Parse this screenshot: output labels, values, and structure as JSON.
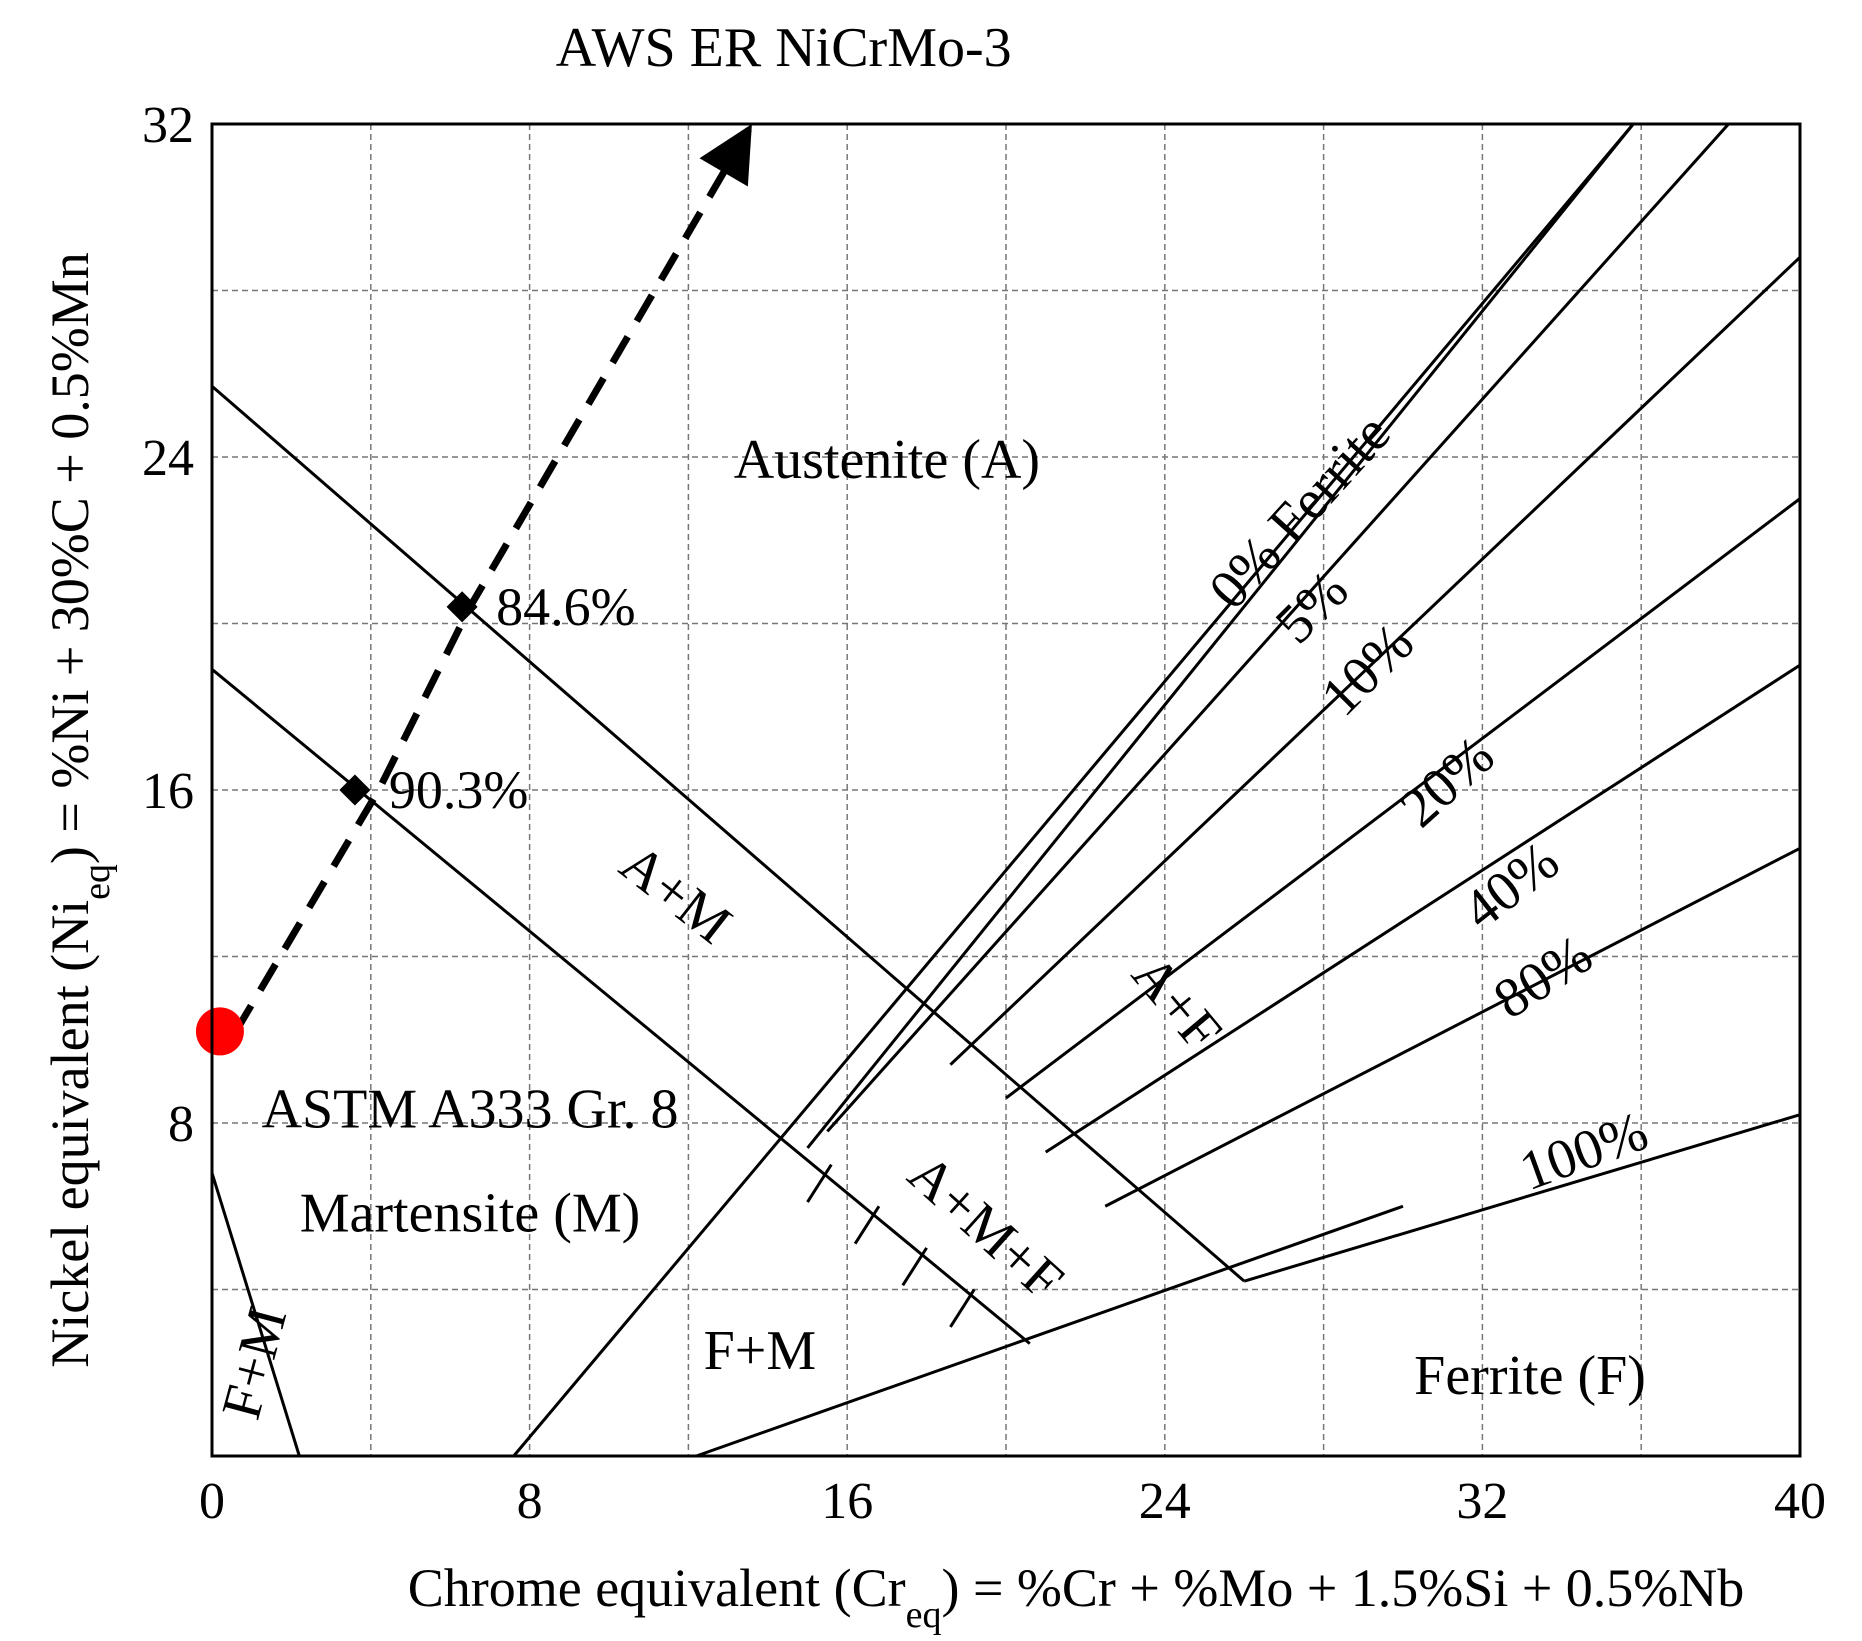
{
  "chart_data": {
    "type": "scatter",
    "title": "",
    "xlabel": {
      "main": "Chrome equivalent (Cr",
      "sub": "eq",
      "rest": ") = %Cr + %Mo + 1.5%Si + 0.5%Nb"
    },
    "ylabel": {
      "main": "Nickel equivalent (Ni",
      "sub": "eq",
      "rest": ") = %Ni + 30%C + 0.5%Mn"
    },
    "xlim": [
      0,
      40
    ],
    "ylim": [
      0,
      32
    ],
    "xticks": [
      "0",
      "8",
      "16",
      "24",
      "32",
      "40"
    ],
    "yticks": [
      "8",
      "16",
      "24",
      "32"
    ],
    "grid": true,
    "boundaries": [
      {
        "name": "austenite-martensite-upper",
        "points": [
          [
            0,
            25.7
          ],
          [
            26,
            4.2
          ]
        ]
      },
      {
        "name": "austenite-martensite-lower",
        "points": [
          [
            0,
            18.9
          ],
          [
            20.6,
            2.7
          ]
        ]
      },
      {
        "name": "ferrite-lower",
        "points": [
          [
            12.2,
            0
          ],
          [
            30,
            6
          ]
        ]
      },
      {
        "name": "ferrite-martensite-left",
        "points": [
          [
            0,
            6.8
          ],
          [
            2.2,
            0
          ]
        ]
      },
      {
        "name": "ferrite-martensite-right",
        "points": [
          [
            7.6,
            0
          ],
          [
            35.8,
            32
          ]
        ]
      },
      {
        "name": "ferrite-0",
        "points": [
          [
            15,
            7.4
          ],
          [
            35.8,
            32
          ]
        ]
      },
      {
        "name": "ferrite-5",
        "points": [
          [
            15.5,
            7.8
          ],
          [
            38.2,
            32
          ]
        ]
      },
      {
        "name": "ferrite-10",
        "points": [
          [
            18.6,
            9.4
          ],
          [
            40,
            28.8
          ]
        ]
      },
      {
        "name": "ferrite-20",
        "points": [
          [
            20,
            8.6
          ],
          [
            40,
            23
          ]
        ]
      },
      {
        "name": "ferrite-40",
        "points": [
          [
            21,
            7.3
          ],
          [
            40,
            19
          ]
        ]
      },
      {
        "name": "ferrite-80",
        "points": [
          [
            22.5,
            6
          ],
          [
            40,
            14.6
          ]
        ]
      },
      {
        "name": "ferrite-100",
        "points": [
          [
            26,
            4.2
          ],
          [
            40,
            8.2
          ]
        ]
      }
    ],
    "region_labels": [
      {
        "text": "Austenite (A)",
        "x": 17,
        "y": 23.8,
        "angle": 0
      },
      {
        "text": "A+M",
        "x": 11.6,
        "y": 13.4,
        "angle": 38
      },
      {
        "text": "Martensite (M)",
        "x": 6.5,
        "y": 5.7,
        "angle": 0
      },
      {
        "text": "ASTM A333 Gr. 8",
        "x": 6.5,
        "y": 8.2,
        "angle": 0
      },
      {
        "text": "F+M",
        "x": 13.8,
        "y": 2.4,
        "angle": 0
      },
      {
        "text": "F+M",
        "x": 1.2,
        "y": 2.2,
        "angle": -75
      },
      {
        "text": "A+M+F",
        "x": 19.4,
        "y": 5.4,
        "angle": 42
      },
      {
        "text": "A+F",
        "x": 24.2,
        "y": 10.8,
        "angle": 50
      },
      {
        "text": "Ferrite (F)",
        "x": 33.2,
        "y": 1.8,
        "angle": 0
      }
    ],
    "iso_labels": [
      {
        "text": "0% Ferrite",
        "x": 27.5,
        "y": 22.6,
        "angle": -48
      },
      {
        "text": "5%",
        "x": 27.8,
        "y": 20.3,
        "angle": -45
      },
      {
        "text": "10%",
        "x": 29.2,
        "y": 18.8,
        "angle": -45
      },
      {
        "text": "20%",
        "x": 31.2,
        "y": 16.1,
        "angle": -42
      },
      {
        "text": "40%",
        "x": 32.8,
        "y": 13.6,
        "angle": -38
      },
      {
        "text": "80%",
        "x": 33.6,
        "y": 11.4,
        "angle": -33
      },
      {
        "text": "100%",
        "x": 34.6,
        "y": 7.2,
        "angle": -20
      }
    ],
    "series": [
      {
        "name": "",
        "style": "dashed-arrow",
        "points": [
          [
            0.6,
            10.2
          ],
          [
            4.2,
            16
          ],
          [
            6.5,
            20.4
          ],
          [
            13.6,
            32
          ]
        ]
      }
    ],
    "markers": [
      {
        "label": "84.6%",
        "x": 6.3,
        "y": 20.4
      },
      {
        "label": "90.3%",
        "x": 3.6,
        "y": 16.0
      }
    ],
    "base_point": {
      "x": 0.2,
      "y": 10.2,
      "color": "#ff0000"
    },
    "top_label": "AWS ER NiCrMo-3",
    "colors": {
      "base_point": "#ff0000",
      "lines": "#000000",
      "grid": "#777777"
    }
  }
}
